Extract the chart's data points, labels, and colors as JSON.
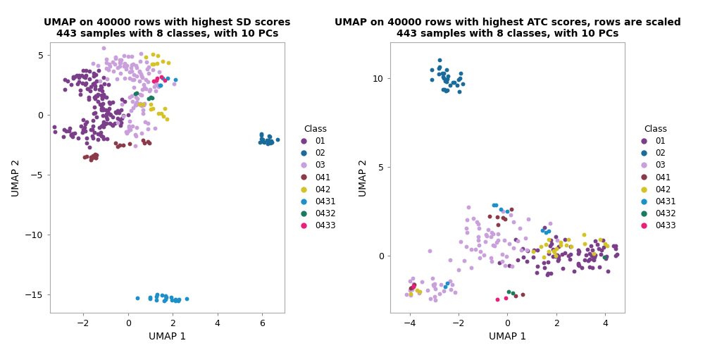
{
  "title1": "UMAP on 40000 rows with highest SD scores\n443 samples with 8 classes, with 10 PCs",
  "title2": "UMAP on 40000 rows with highest ATC scores, rows are scaled\n443 samples with 8 classes, with 10 PCs",
  "xlabel": "UMAP 1",
  "ylabel": "UMAP 2",
  "classes": [
    "01",
    "02",
    "03",
    "041",
    "042",
    "0431",
    "0432",
    "0433"
  ],
  "colors": {
    "01": "#7B3F8A",
    "02": "#1A6B9A",
    "03": "#C9A0DC",
    "041": "#8B3A4A",
    "042": "#D4C227",
    "0431": "#1E90C8",
    "0432": "#1A7A5E",
    "0433": "#E8207A"
  },
  "plot1": {
    "xlim": [
      -3.5,
      7.0
    ],
    "ylim": [
      -16.5,
      6.0
    ],
    "xticks": [
      -2,
      0,
      2,
      4,
      6
    ],
    "yticks": [
      5,
      0,
      -5,
      -10,
      -15
    ]
  },
  "plot2": {
    "xlim": [
      -4.8,
      4.8
    ],
    "ylim": [
      -3.2,
      12.0
    ],
    "xticks": [
      -4,
      -2,
      0,
      2,
      4
    ],
    "yticks": [
      0,
      5,
      10
    ]
  },
  "bg_color": "#FFFFFF",
  "point_size": 18,
  "title_fontsize": 10
}
